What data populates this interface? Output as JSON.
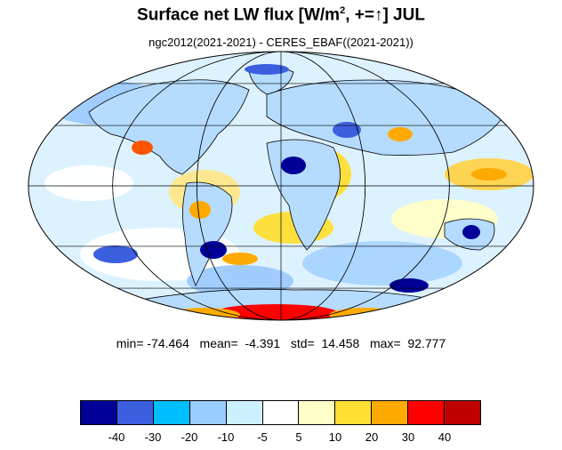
{
  "title": {
    "main": "Surface net LW flux [W/m",
    "sup": "2",
    "rest": ", +=",
    "arrow": "↑",
    "end": "]  JUL"
  },
  "subtitle": "ngc2012(2021-2021) - CERES_EBAF((2021-2021))",
  "stats": "min= -74.464   mean=  -4.391   std=  14.458   max=  92.777",
  "colorbar": {
    "colors": [
      "#000099",
      "#3c5fe0",
      "#00bfff",
      "#99ccff",
      "#ccf0ff",
      "#ffffff",
      "#ffffc8",
      "#ffe033",
      "#ffaa00",
      "#ff0000",
      "#c00000"
    ],
    "ticks": [
      "-40",
      "-30",
      "-20",
      "-10",
      "-5",
      "5",
      "10",
      "20",
      "30",
      "40"
    ]
  },
  "map": {
    "projection": "Mollweide"
  }
}
